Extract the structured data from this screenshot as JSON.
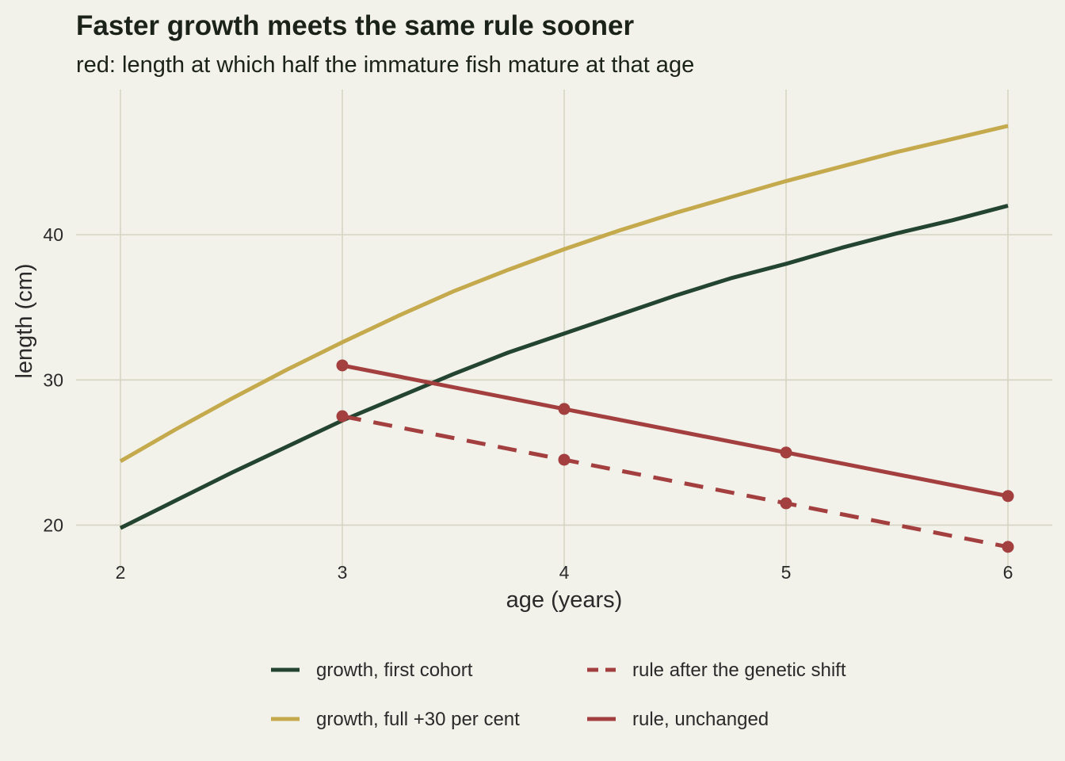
{
  "chart_data": {
    "type": "line",
    "title": "Faster growth meets the same rule sooner",
    "subtitle": "red: length at which half the immature fish mature at that age",
    "xlabel": "age (years)",
    "ylabel": "length (cm)",
    "xlim": [
      1.8,
      6.2
    ],
    "ylim": [
      16.8,
      50.0
    ],
    "xticks": [
      2,
      3,
      4,
      5,
      6
    ],
    "yticks": [
      20,
      30,
      40
    ],
    "grid": true,
    "legend_position": "bottom",
    "series": [
      {
        "name": "growth, first cohort",
        "color": "#234430",
        "style": "solid",
        "markers": false,
        "x": [
          2.0,
          2.25,
          2.5,
          2.75,
          3.0,
          3.25,
          3.5,
          3.75,
          4.0,
          4.25,
          4.5,
          4.75,
          5.0,
          5.25,
          5.5,
          5.75,
          6.0
        ],
        "y": [
          19.8,
          21.7,
          23.6,
          25.4,
          27.2,
          28.8,
          30.4,
          31.9,
          33.2,
          34.5,
          35.8,
          37.0,
          38.0,
          39.1,
          40.1,
          41.0,
          42.0
        ]
      },
      {
        "name": "growth, full +30 per cent",
        "color": "#c4aa4c",
        "style": "solid",
        "markers": false,
        "x": [
          2.0,
          2.25,
          2.5,
          2.75,
          3.0,
          3.25,
          3.5,
          3.75,
          4.0,
          4.25,
          4.5,
          4.75,
          5.0,
          5.25,
          5.5,
          5.75,
          6.0
        ],
        "y": [
          24.4,
          26.6,
          28.7,
          30.7,
          32.6,
          34.4,
          36.1,
          37.6,
          39.0,
          40.3,
          41.5,
          42.6,
          43.7,
          44.7,
          45.7,
          46.6,
          47.5
        ]
      },
      {
        "name": "rule after the genetic shift",
        "color": "#a33f3f",
        "style": "dashed",
        "markers": true,
        "x": [
          3,
          4,
          5,
          6
        ],
        "y": [
          27.5,
          24.5,
          21.5,
          18.5
        ]
      },
      {
        "name": "rule, unchanged",
        "color": "#a33f3f",
        "style": "solid",
        "markers": true,
        "x": [
          3,
          4,
          5,
          6
        ],
        "y": [
          31.0,
          28.0,
          25.0,
          22.0
        ]
      }
    ]
  }
}
